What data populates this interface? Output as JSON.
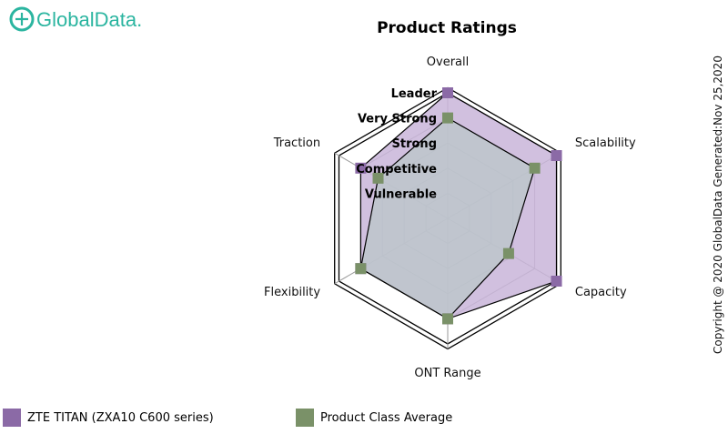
{
  "brand": {
    "name": "GlobalData.",
    "color": "#2bb5a0"
  },
  "copyright": "Copyright @ 2020 GlobalData Generated:Nov 25,2020",
  "chart_data": {
    "type": "radar",
    "title": "Product Ratings",
    "axes": [
      "Overall",
      "Scalability",
      "Capacity",
      "ONT Range",
      "Flexibility",
      "Traction"
    ],
    "levels": [
      "Vulnerable",
      "Competitive",
      "Strong",
      "Very Strong",
      "Leader"
    ],
    "range": [
      0,
      5
    ],
    "series": [
      {
        "name": "ZTE TITAN (ZXA10 C600 series)",
        "color": "#8b6aa6",
        "fill": "#c9b5d9",
        "values": [
          5,
          5,
          5,
          4,
          4,
          4
        ]
      },
      {
        "name": "Product Class Average",
        "color": "#7a9168",
        "fill": "#b9c7c8",
        "values": [
          4,
          4,
          2.8,
          4,
          4,
          3.2
        ]
      }
    ]
  }
}
